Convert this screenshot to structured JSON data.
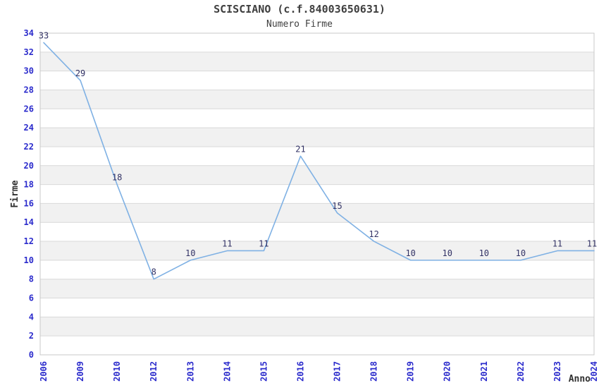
{
  "header": {
    "title": "SCISCIANO (c.f.84003650631)",
    "subtitle": "Numero Firme"
  },
  "chart_data": {
    "type": "line",
    "title": "SCISCIANO (c.f.84003650631)",
    "subtitle": "Numero Firme",
    "xlabel": "Anno",
    "ylabel": "Firme",
    "categories": [
      "2006",
      "2009",
      "2010",
      "2012",
      "2013",
      "2014",
      "2015",
      "2016",
      "2017",
      "2018",
      "2019",
      "2020",
      "2021",
      "2022",
      "2023",
      "2024"
    ],
    "series": [
      {
        "name": "Numero Firme",
        "values": [
          33,
          29,
          18,
          8,
          10,
          11,
          11,
          21,
          15,
          12,
          10,
          10,
          10,
          10,
          11,
          11
        ]
      }
    ],
    "ylim": [
      0,
      34
    ],
    "ytick_step": 2,
    "grid": true,
    "legend": "none",
    "gray_band_ranges": [
      [
        2,
        4
      ],
      [
        6,
        8
      ],
      [
        10,
        12
      ],
      [
        14,
        16
      ],
      [
        18,
        20
      ],
      [
        22,
        24
      ],
      [
        26,
        28
      ],
      [
        30,
        32
      ]
    ],
    "colors": {
      "line": "#7fb1e4",
      "data_label": "#333366",
      "tick_label": "#2b2bcc",
      "axis_title": "#2f2f2f",
      "band": "#f1f1f1",
      "gridline": "#d9d9d9",
      "plot_border": "#c8c8c8",
      "background": "#ffffff"
    }
  }
}
